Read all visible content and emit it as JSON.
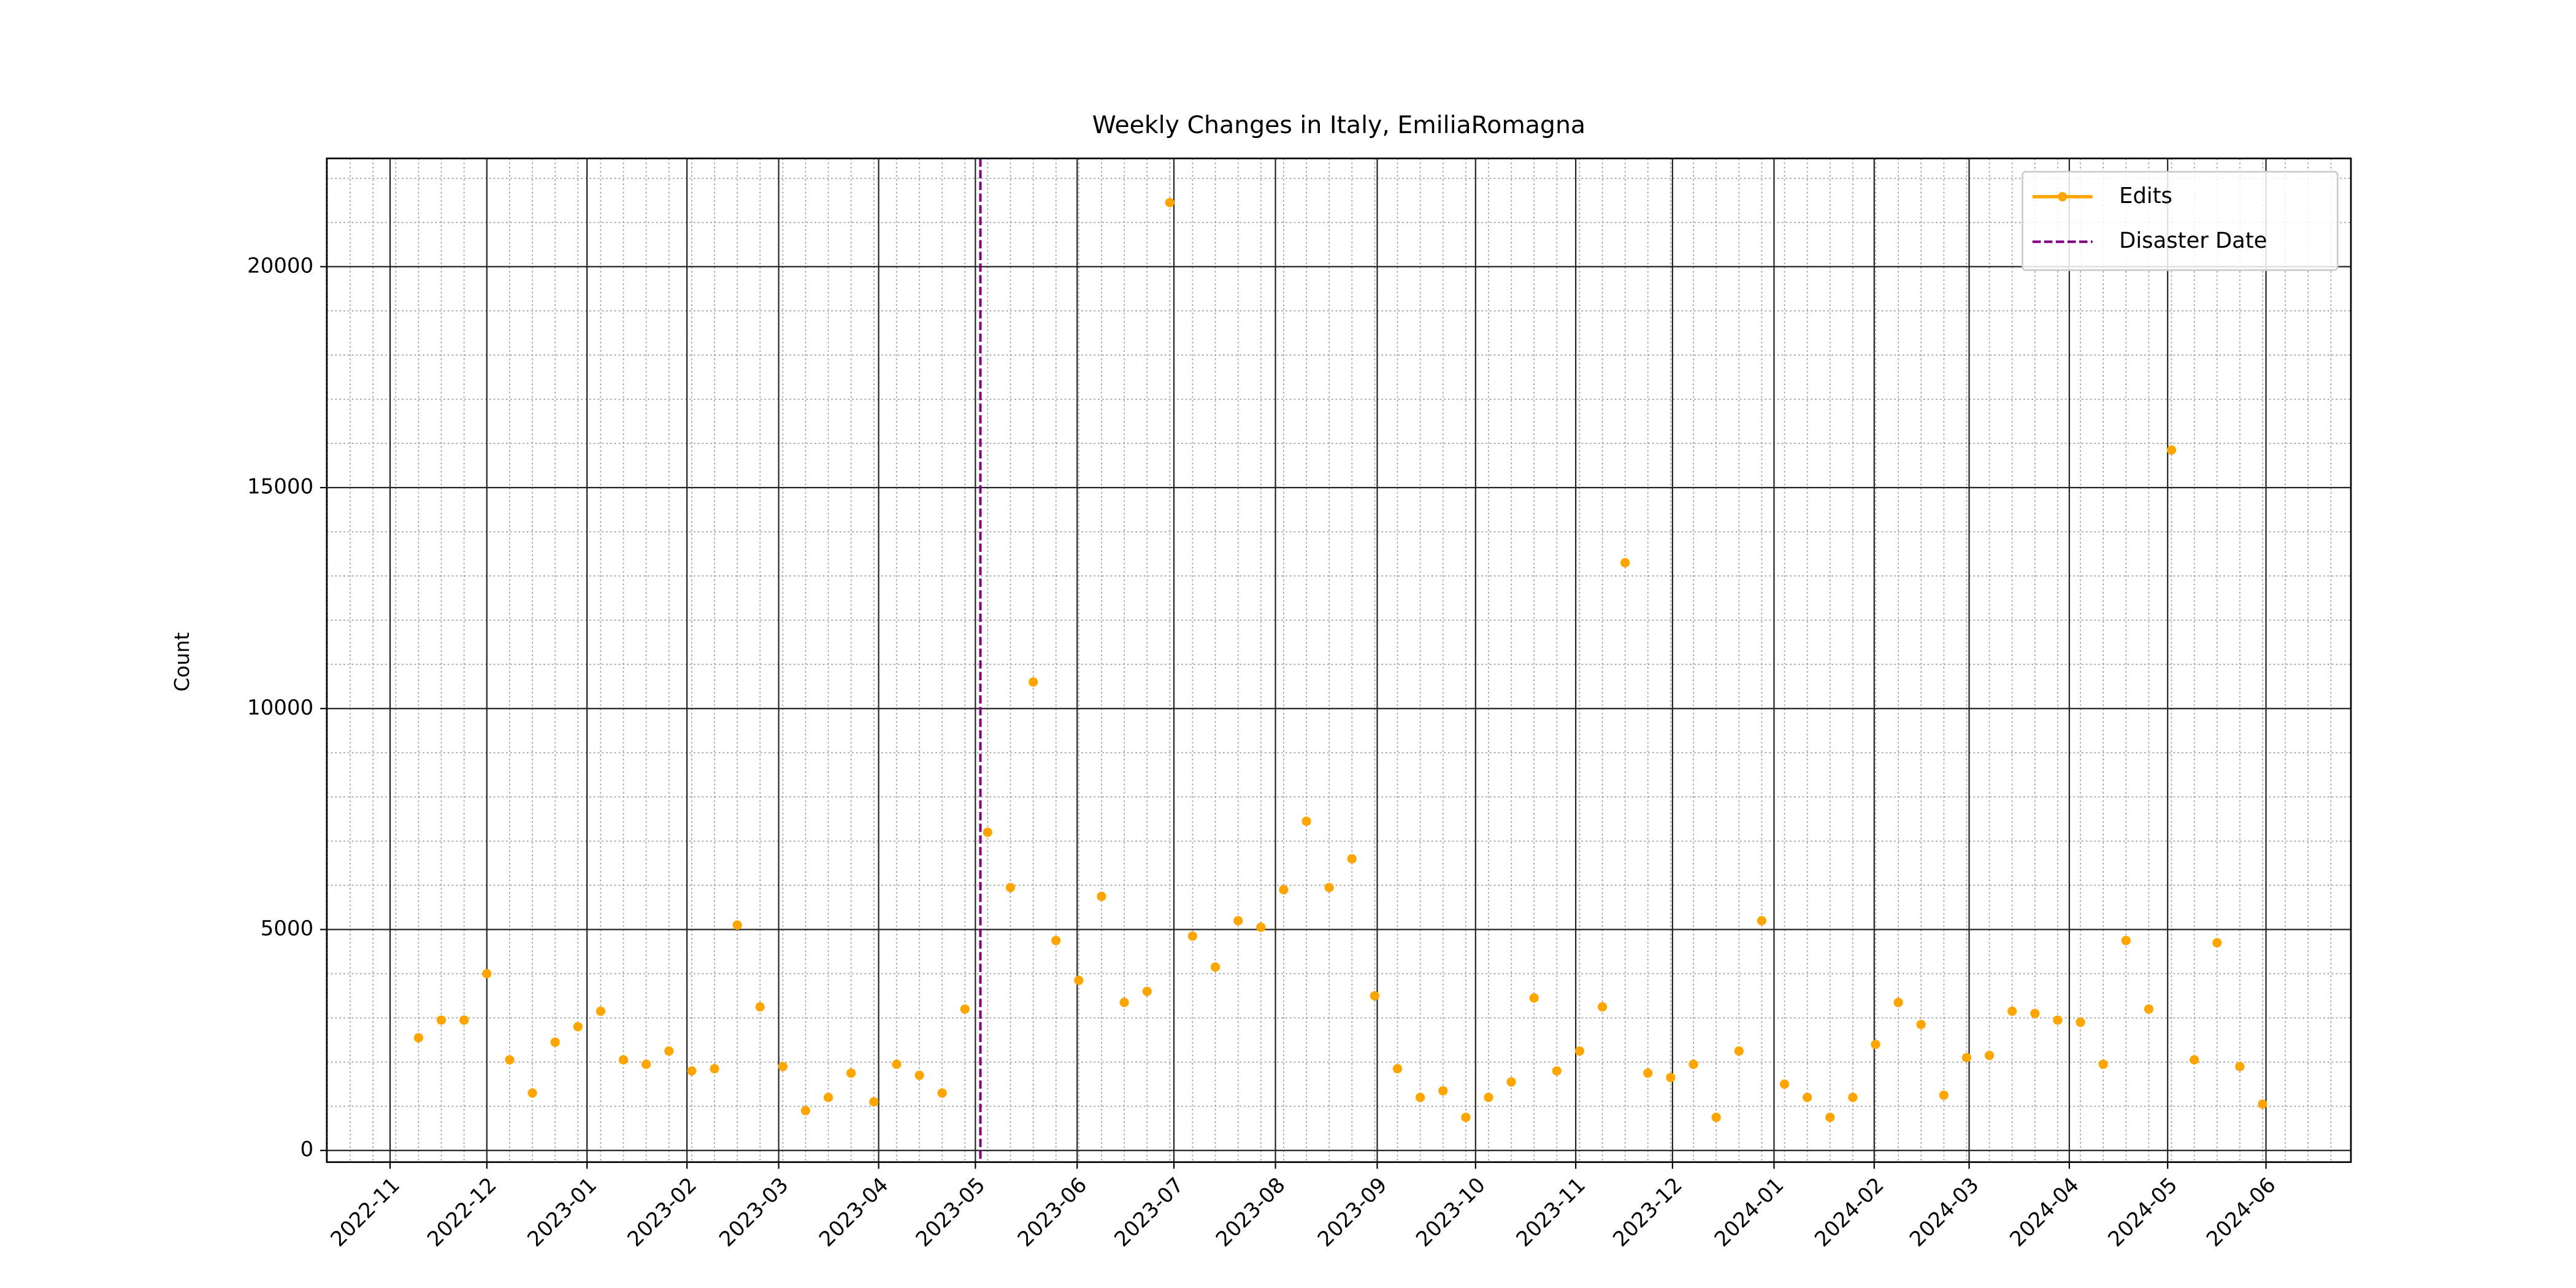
{
  "chart_data": {
    "type": "line",
    "title": "Weekly Changes in Italy, EmiliaRomagna",
    "y_label": "Count",
    "categories": [
      null,
      null,
      null,
      null,
      null,
      null,
      null,
      null,
      null,
      null,
      null,
      null,
      null,
      null,
      null,
      null,
      null,
      null,
      null,
      null,
      null,
      null,
      null,
      null,
      null,
      null,
      null,
      null,
      null,
      null,
      null,
      null,
      null,
      null,
      null,
      null,
      null,
      null,
      null,
      null,
      null,
      null,
      null,
      null,
      null,
      null,
      null,
      null,
      null,
      null,
      null,
      null,
      null,
      null,
      null,
      null,
      null,
      null,
      null,
      null,
      null,
      null,
      null,
      null,
      null,
      null,
      null,
      null,
      null,
      null,
      null,
      null,
      null,
      null,
      null,
      null,
      null,
      null,
      null,
      null,
      null,
      null
    ],
    "series": [
      {
        "name": "Edits",
        "color": "#ffa500",
        "values": [
          2550,
          2950,
          2950,
          4000,
          2050,
          1300,
          2450,
          2800,
          3150,
          2050,
          1950,
          2250,
          1800,
          1850,
          5100,
          3250,
          1900,
          900,
          1200,
          1750,
          1100,
          1950,
          1700,
          1300,
          3200,
          7200,
          5950,
          10600,
          4750,
          3850,
          5750,
          3350,
          3600,
          21450,
          4850,
          4150,
          5200,
          5050,
          5900,
          7450,
          5950,
          6600,
          3500,
          1850,
          1200,
          1350,
          750,
          1200,
          1550,
          3450,
          1800,
          2250,
          3250,
          13300,
          1750,
          1650,
          1950,
          750,
          2250,
          5200,
          1500,
          1200,
          750,
          1200,
          2400,
          3350,
          2850,
          1250,
          2100,
          2150,
          3150,
          3100,
          2950,
          2900,
          1950,
          4750,
          3200,
          15850,
          2050,
          4700,
          1900,
          1050
        ]
      }
    ],
    "vline": {
      "name": "Disaster Date",
      "color": "#800080",
      "x": 24.68
    },
    "xlim": [
      -4.03,
      84.88
    ],
    "xticks": [
      {
        "value": -1.25,
        "label": "2022-11"
      },
      {
        "value": 3.0,
        "label": "2022-12"
      },
      {
        "value": 7.4,
        "label": "2023-01"
      },
      {
        "value": 11.79,
        "label": "2023-02"
      },
      {
        "value": 15.82,
        "label": "2023-03"
      },
      {
        "value": 20.21,
        "label": "2023-04"
      },
      {
        "value": 24.46,
        "label": "2023-05"
      },
      {
        "value": 28.93,
        "label": "2023-06"
      },
      {
        "value": 33.18,
        "label": "2023-07"
      },
      {
        "value": 37.64,
        "label": "2023-08"
      },
      {
        "value": 42.11,
        "label": "2023-09"
      },
      {
        "value": 46.43,
        "label": "2023-10"
      },
      {
        "value": 50.83,
        "label": "2023-11"
      },
      {
        "value": 55.08,
        "label": "2023-12"
      },
      {
        "value": 59.54,
        "label": "2024-01"
      },
      {
        "value": 63.94,
        "label": "2024-02"
      },
      {
        "value": 68.11,
        "label": "2024-03"
      },
      {
        "value": 72.51,
        "label": "2024-04"
      },
      {
        "value": 76.83,
        "label": "2024-05"
      },
      {
        "value": 81.15,
        "label": "2024-06"
      }
    ],
    "ylim": [
      -264,
      22450
    ],
    "yticks": [
      0,
      5000,
      10000,
      15000,
      20000
    ],
    "grid": true,
    "legend": "upper right"
  }
}
